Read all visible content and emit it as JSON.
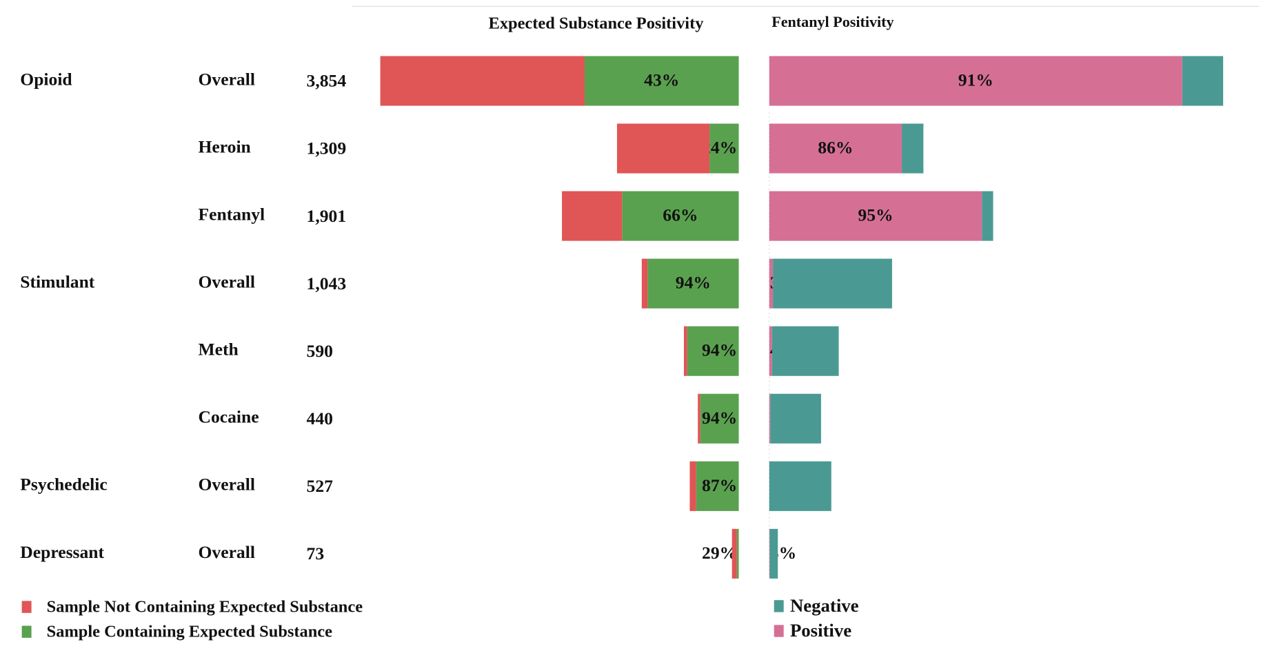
{
  "chart_data": {
    "type": "butterfly",
    "groups": [
      "Opioid",
      null,
      null,
      "Stimulant",
      null,
      null,
      "Psychedelic",
      "Depressant"
    ],
    "categories": [
      "Overall",
      "Heroin",
      "Fentanyl",
      "Overall",
      "Meth",
      "Cocaine",
      "Overall",
      "Overall"
    ],
    "counts": [
      3854,
      1309,
      1901,
      1043,
      590,
      440,
      527,
      73
    ],
    "count_labels": [
      "3,854",
      "1,309",
      "1,901",
      "1,043",
      "590",
      "440",
      "527",
      "73"
    ],
    "panels": [
      {
        "title": "Expected Substance Positivity",
        "series": [
          {
            "name": "Sample Not Containing Expected Substance",
            "color": "#e05555",
            "values": [
              57,
              76,
              34,
              6,
              6,
              6,
              13,
              71
            ]
          },
          {
            "name": "Sample Containing Expected Substance",
            "color": "#5aa14f",
            "values": [
              43,
              24,
              66,
              94,
              94,
              94,
              87,
              29
            ],
            "value_labels": [
              "43%",
              "24%",
              "66%",
              "94%",
              "94%",
              "94%",
              "87%",
              "29%"
            ]
          }
        ]
      },
      {
        "title": "Fentanyl Positivity",
        "series": [
          {
            "name": "Negative",
            "color": "#4a9a93",
            "values": [
              9,
              14,
              5,
              97,
              96,
              98,
              100,
              95
            ]
          },
          {
            "name": "Positive",
            "color": "#d57094",
            "values": [
              91,
              86,
              95,
              3,
              4,
              2,
              0,
              5
            ],
            "value_labels": [
              "91%",
              "86%",
              "95%",
              "3%",
              "4%",
              "2%",
              null,
              "5%"
            ]
          }
        ]
      }
    ]
  }
}
